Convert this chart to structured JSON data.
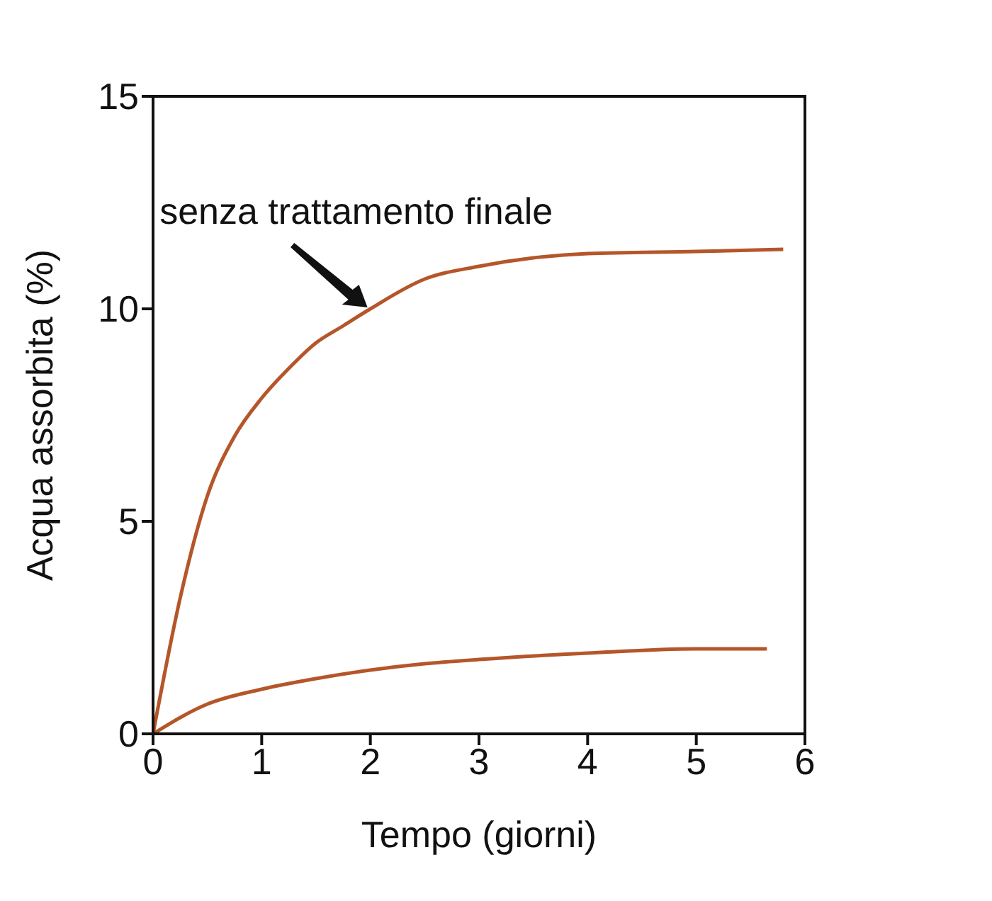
{
  "chart_data": {
    "type": "line",
    "xlabel": "Tempo (giorni)",
    "ylabel": "Acqua assorbita (%)",
    "xlim": [
      0,
      6
    ],
    "ylim": [
      0,
      15
    ],
    "xticks": [
      0,
      1,
      2,
      3,
      4,
      5,
      6
    ],
    "yticks": [
      0,
      5,
      10,
      15
    ],
    "grid": false,
    "legend": false,
    "marker": "none",
    "line_style": "solid",
    "annotations": [
      {
        "text": "senza trattamento finale",
        "x": 2,
        "y": 10
      }
    ],
    "series": [
      {
        "color": "#b5562a",
        "x": [
          0,
          0.25,
          0.5,
          0.75,
          1,
          1.25,
          1.5,
          1.75,
          2,
          2.5,
          3,
          3.5,
          4,
          5,
          5.8
        ],
        "values": [
          0,
          3.2,
          5.6,
          7.0,
          7.9,
          8.6,
          9.2,
          9.6,
          10.0,
          10.7,
          11.0,
          11.2,
          11.3,
          11.35,
          11.4
        ]
      },
      {
        "color": "#b5562a",
        "x": [
          0,
          0.5,
          1,
          1.5,
          2,
          2.5,
          3,
          4,
          5,
          5.65
        ],
        "values": [
          0,
          0.7,
          1.05,
          1.3,
          1.5,
          1.65,
          1.75,
          1.9,
          2.0,
          2.0
        ]
      }
    ]
  }
}
